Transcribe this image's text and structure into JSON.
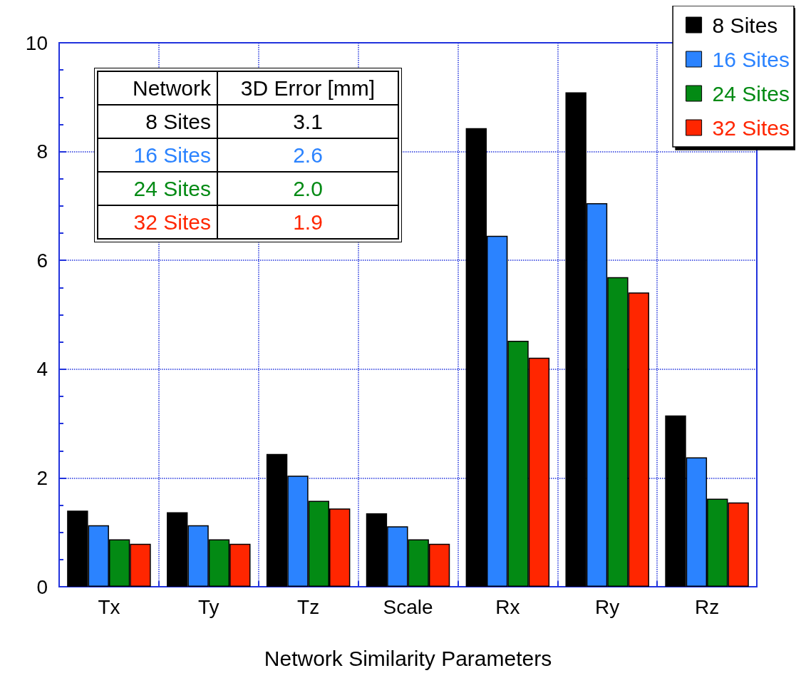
{
  "chart_data": {
    "type": "bar",
    "xlabel": "Network Similarity Parameters",
    "categories": [
      "Tx",
      "Ty",
      "Tz",
      "Scale",
      "Rx",
      "Ry",
      "Rz"
    ],
    "series": [
      {
        "name": "8 Sites",
        "color": "#000000",
        "values": [
          1.4,
          1.37,
          2.44,
          1.35,
          8.43,
          9.09,
          3.15
        ]
      },
      {
        "name": "16 Sites",
        "color": "#2b83ff",
        "values": [
          1.13,
          1.13,
          2.04,
          1.11,
          6.45,
          7.05,
          2.38
        ]
      },
      {
        "name": "24 Sites",
        "color": "#038a14",
        "values": [
          0.87,
          0.87,
          1.58,
          0.87,
          4.52,
          5.69,
          1.62
        ]
      },
      {
        "name": "32 Sites",
        "color": "#ff2600",
        "values": [
          0.79,
          0.79,
          1.44,
          0.79,
          4.21,
          5.41,
          1.55
        ]
      }
    ],
    "ylim": [
      0,
      10
    ],
    "yticks": [
      0,
      2,
      4,
      6,
      8,
      10
    ],
    "grid": true,
    "legend": "top right",
    "annotations": [
      "Network",
      "3D Error [mm]",
      "8 Sites",
      "3.1",
      "16 Sites",
      "2.6",
      "24 Sites",
      "2.0",
      "32 Sites",
      "1.9"
    ]
  }
}
